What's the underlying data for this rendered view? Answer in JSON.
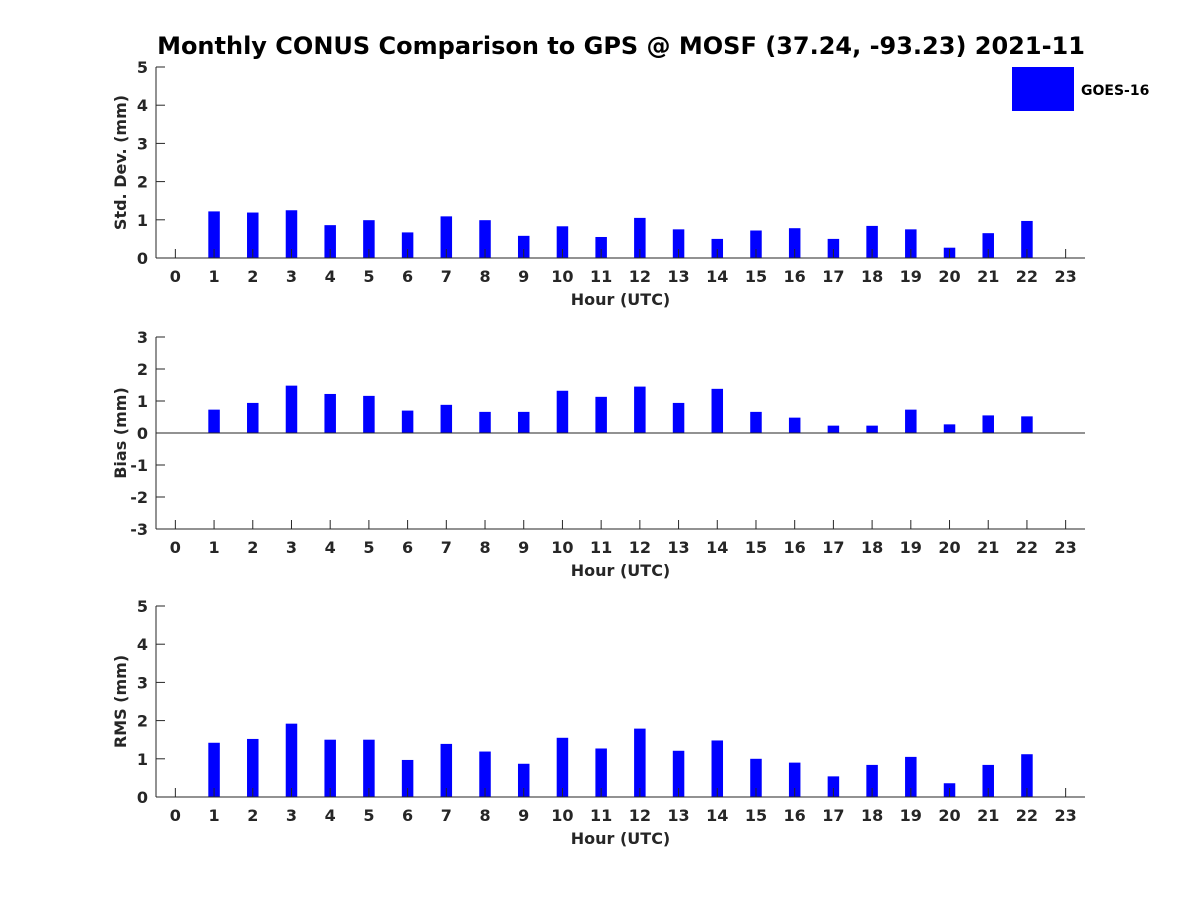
{
  "chart_data": {
    "title": "Monthly CONUS Comparison to GPS @ MOSF (37.24, -93.23) 2021-11",
    "type": "bar",
    "series_name": "GOES-16",
    "bar_color": "#0000FF",
    "legend_location": "top-right",
    "subplots": [
      {
        "id": "stddev",
        "type": "bar",
        "ylabel": "Std. Dev. (mm)",
        "xlabel": "Hour (UTC)",
        "ylim": [
          0,
          5
        ],
        "xlim": [
          -0.5,
          23.5
        ],
        "yticks": [
          0,
          1,
          2,
          3,
          4,
          5
        ],
        "xticks": [
          0,
          1,
          2,
          3,
          4,
          5,
          6,
          7,
          8,
          9,
          10,
          11,
          12,
          13,
          14,
          15,
          16,
          17,
          18,
          19,
          20,
          21,
          22,
          23
        ],
        "hours": [
          1,
          2,
          3,
          4,
          5,
          6,
          7,
          8,
          9,
          10,
          11,
          12,
          13,
          14,
          15,
          16,
          17,
          18,
          19,
          20,
          21,
          22
        ],
        "values": [
          1.22,
          1.19,
          1.25,
          0.86,
          0.99,
          0.67,
          1.09,
          0.99,
          0.58,
          0.83,
          0.55,
          1.05,
          0.75,
          0.5,
          0.72,
          0.78,
          0.5,
          0.84,
          0.75,
          0.27,
          0.65,
          0.97
        ]
      },
      {
        "id": "bias",
        "type": "bar",
        "ylabel": "Bias (mm)",
        "xlabel": "Hour (UTC)",
        "ylim": [
          -3,
          3
        ],
        "xlim": [
          -0.5,
          23.5
        ],
        "yticks": [
          -3,
          -2,
          -1,
          0,
          1,
          2,
          3
        ],
        "xticks": [
          0,
          1,
          2,
          3,
          4,
          5,
          6,
          7,
          8,
          9,
          10,
          11,
          12,
          13,
          14,
          15,
          16,
          17,
          18,
          19,
          20,
          21,
          22,
          23
        ],
        "zero_line": true,
        "hours": [
          1,
          2,
          3,
          4,
          5,
          6,
          7,
          8,
          9,
          10,
          11,
          12,
          13,
          14,
          15,
          16,
          17,
          18,
          19,
          20,
          21,
          22
        ],
        "values": [
          0.73,
          0.94,
          1.48,
          1.22,
          1.16,
          0.7,
          0.88,
          0.66,
          0.66,
          1.32,
          1.13,
          1.45,
          0.94,
          1.38,
          0.66,
          0.48,
          0.23,
          0.23,
          0.73,
          0.27,
          0.55,
          0.52
        ]
      },
      {
        "id": "rms",
        "type": "bar",
        "ylabel": "RMS (mm)",
        "xlabel": "Hour (UTC)",
        "ylim": [
          0,
          5
        ],
        "xlim": [
          -0.5,
          23.5
        ],
        "yticks": [
          0,
          1,
          2,
          3,
          4,
          5
        ],
        "xticks": [
          0,
          1,
          2,
          3,
          4,
          5,
          6,
          7,
          8,
          9,
          10,
          11,
          12,
          13,
          14,
          15,
          16,
          17,
          18,
          19,
          20,
          21,
          22,
          23
        ],
        "hours": [
          1,
          2,
          3,
          4,
          5,
          6,
          7,
          8,
          9,
          10,
          11,
          12,
          13,
          14,
          15,
          16,
          17,
          18,
          19,
          20,
          21,
          22
        ],
        "values": [
          1.42,
          1.52,
          1.92,
          1.5,
          1.5,
          0.97,
          1.39,
          1.19,
          0.87,
          1.55,
          1.27,
          1.79,
          1.21,
          1.48,
          1.0,
          0.9,
          0.54,
          0.84,
          1.05,
          0.36,
          0.84,
          1.12
        ]
      }
    ]
  }
}
